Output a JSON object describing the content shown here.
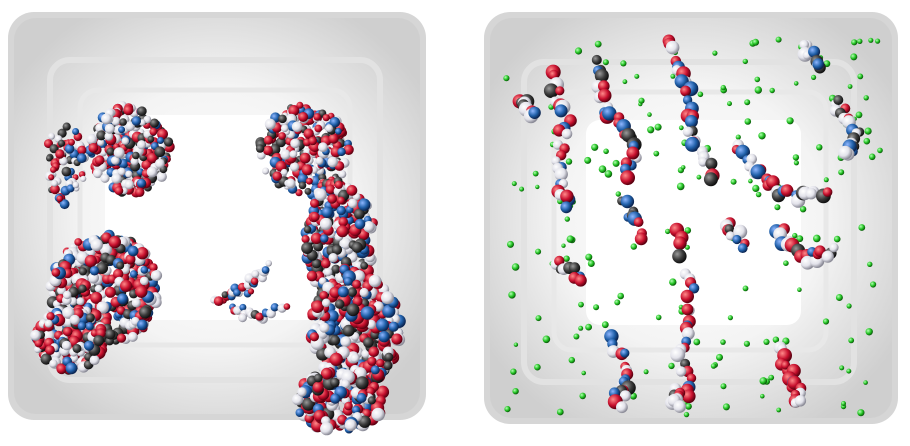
{
  "figure": {
    "panels": [
      {
        "id": "left",
        "description_key": "box-with-wall-adsorbed-clusters",
        "atom_colors": [
          "#c8102e",
          "#1f5fa8",
          "#e8e8ee",
          "#3a3a3a"
        ]
      },
      {
        "id": "right",
        "description_key": "box-with-dispersed-chains-and-ions",
        "atom_colors": [
          "#c8102e",
          "#1f5fa8",
          "#e8e8ee",
          "#3a3a3a"
        ],
        "ion_color": "#22c322"
      }
    ],
    "surface_color": "#d9d9d9"
  }
}
